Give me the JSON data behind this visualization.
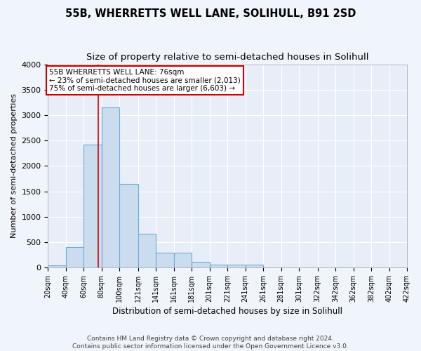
{
  "title": "55B, WHERRETTS WELL LANE, SOLIHULL, B91 2SD",
  "subtitle": "Size of property relative to semi-detached houses in Solihull",
  "xlabel": "Distribution of semi-detached houses by size in Solihull",
  "ylabel": "Number of semi-detached properties",
  "footer1": "Contains HM Land Registry data © Crown copyright and database right 2024.",
  "footer2": "Contains public sector information licensed under the Open Government Licence v3.0.",
  "property_size": 76,
  "bin_edges": [
    20,
    40,
    60,
    80,
    100,
    121,
    141,
    161,
    181,
    201,
    221,
    241,
    261,
    281,
    301,
    322,
    342,
    362,
    382,
    402,
    422
  ],
  "bar_heights": [
    40,
    395,
    2420,
    3150,
    1640,
    670,
    285,
    285,
    115,
    55,
    55,
    55,
    0,
    0,
    0,
    0,
    0,
    0,
    0,
    0
  ],
  "bar_color": "#ccdcef",
  "bar_edge_color": "#6aaed6",
  "bar_edge_width": 0.8,
  "vline_color": "#cc0000",
  "vline_x": 76,
  "annotation_line1": "55B WHERRETTS WELL LANE: 76sqm",
  "annotation_line2": "← 23% of semi-detached houses are smaller (2,013)",
  "annotation_line3": "75% of semi-detached houses are larger (6,603) →",
  "annotation_box_color": "#ffffff",
  "annotation_box_edge_color": "#cc0000",
  "annotation_fontsize": 7.5,
  "ylim": [
    0,
    4000
  ],
  "fig_bg_color": "#f0f4fb",
  "plot_bg_color": "#e8eef7",
  "grid_color": "#ffffff",
  "title_fontsize": 10.5,
  "subtitle_fontsize": 9.5,
  "xlabel_fontsize": 8.5,
  "ylabel_fontsize": 8,
  "tick_fontsize": 7,
  "footer_fontsize": 6.5
}
